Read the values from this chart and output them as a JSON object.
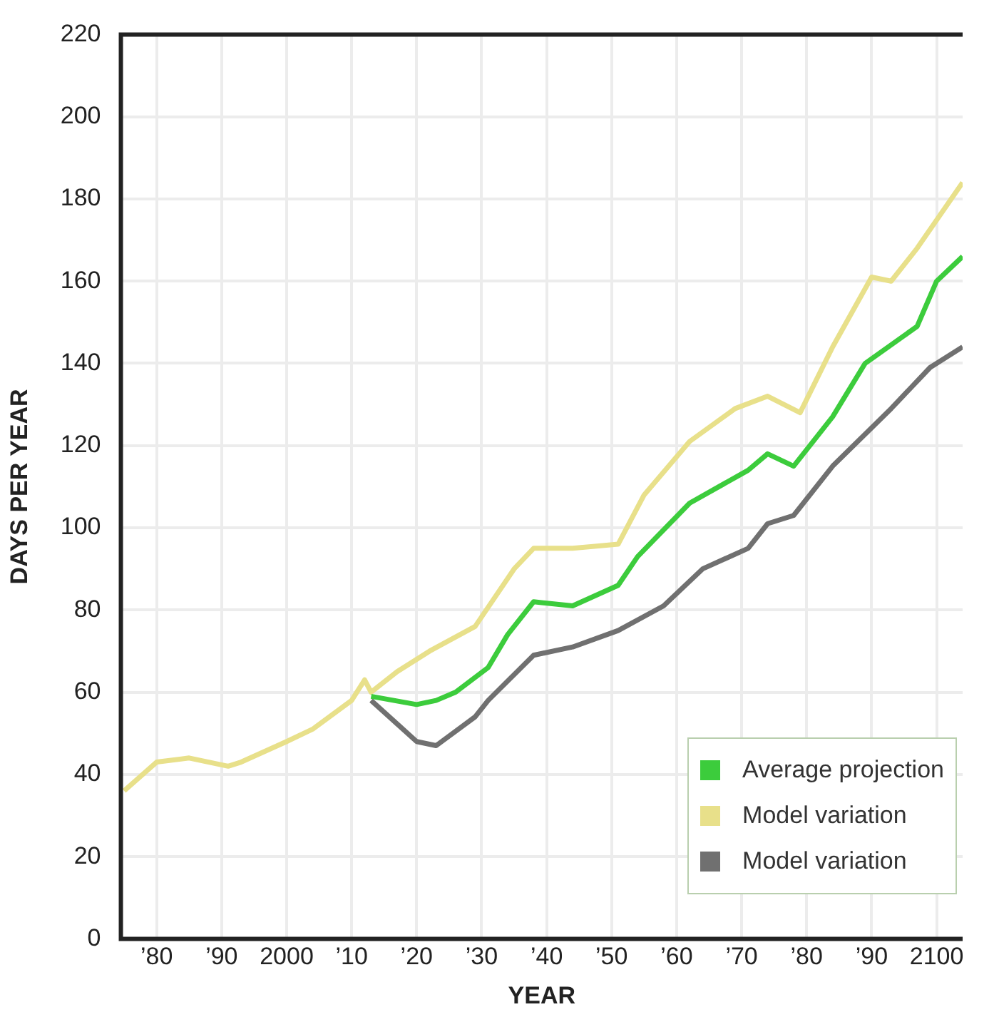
{
  "chart_data": {
    "type": "line",
    "xlabel": "YEAR",
    "ylabel": "DAYS PER YEAR",
    "xlim": [
      1974.5,
      2104
    ],
    "ylim": [
      0,
      220
    ],
    "xticks": [
      {
        "value": 1980,
        "label": "’80"
      },
      {
        "value": 1990,
        "label": "’90"
      },
      2000,
      {
        "value": 2010,
        "label": "’10"
      },
      {
        "value": 2020,
        "label": "’20"
      },
      {
        "value": 2030,
        "label": "’30"
      },
      {
        "value": 2040,
        "label": "’40"
      },
      {
        "value": 2050,
        "label": "’50"
      },
      {
        "value": 2060,
        "label": "’60"
      },
      {
        "value": 2070,
        "label": "’70"
      },
      {
        "value": 2080,
        "label": "’80"
      },
      {
        "value": 2090,
        "label": "’90"
      },
      2100
    ],
    "yticks": [
      0,
      20,
      40,
      60,
      80,
      100,
      120,
      140,
      160,
      180,
      200,
      220
    ],
    "grid": true,
    "legend": "bottom right",
    "marker": "none",
    "line_style": "solid",
    "series": [
      {
        "name": "Average projection",
        "color": "#3ccc3c",
        "x": [
          2013,
          2020,
          2023,
          2026,
          2031,
          2034,
          2038,
          2044,
          2051,
          2054,
          2062,
          2071,
          2074,
          2078,
          2084,
          2089,
          2097,
          2100,
          2104
        ],
        "values": [
          59,
          57,
          58,
          60,
          66,
          74,
          82,
          81,
          86,
          93,
          106,
          114,
          118,
          115,
          127,
          140,
          149,
          160,
          166
        ]
      },
      {
        "name": "Model variation",
        "color": "#e8e08a",
        "x": [
          1975,
          1980,
          1985,
          1991,
          1993,
          2000,
          2004,
          2010,
          2012,
          2013,
          2017,
          2022,
          2029,
          2035,
          2038,
          2044,
          2051,
          2055,
          2062,
          2069,
          2074,
          2079,
          2084,
          2090,
          2093,
          2097,
          2104
        ],
        "values": [
          36,
          43,
          44,
          42,
          43,
          48,
          51,
          58,
          63,
          60,
          65,
          70,
          76,
          90,
          95,
          95,
          96,
          108,
          121,
          129,
          132,
          128,
          144,
          161,
          160,
          168,
          184
        ]
      },
      {
        "name": "Model variation",
        "color": "#707070",
        "x": [
          2013,
          2020,
          2023,
          2029,
          2031,
          2038,
          2044,
          2051,
          2058,
          2064,
          2071,
          2074,
          2078,
          2084,
          2093,
          2099,
          2104
        ],
        "values": [
          58,
          48,
          47,
          54,
          58,
          69,
          71,
          75,
          81,
          90,
          95,
          101,
          103,
          115,
          129,
          139,
          144
        ]
      }
    ]
  }
}
